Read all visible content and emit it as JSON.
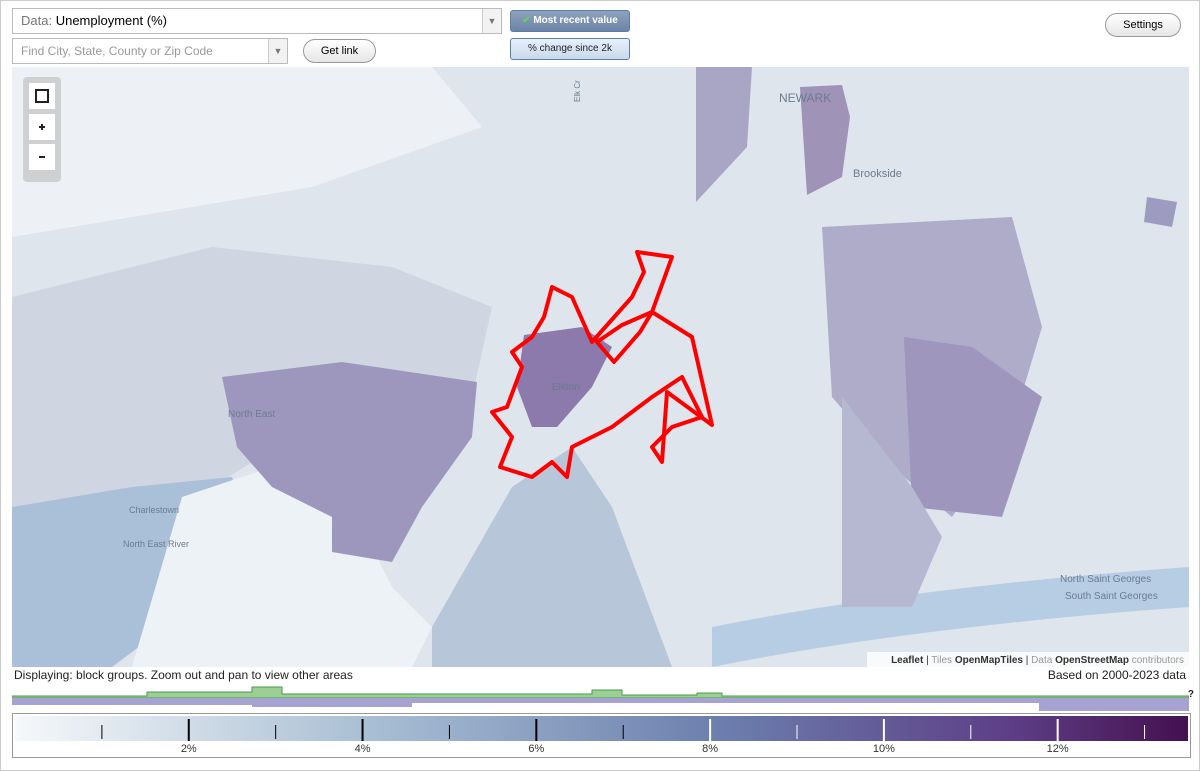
{
  "controls": {
    "data_label": "Data:",
    "data_value": "Unemployment (%)",
    "search_placeholder": "Find City, State, County or Zip Code",
    "get_link": "Get link",
    "most_recent": "Most recent value",
    "pct_change": "% change since 2k",
    "settings": "Settings"
  },
  "map": {
    "labels": [
      "NEWARK",
      "Brookside",
      "Elkton",
      "North East",
      "Charlestown",
      "North East River",
      "North Saint Georges",
      "South Saint Georges",
      "Elk Cr"
    ],
    "attribution": {
      "leaflet": "Leaflet",
      "tiles_prefix": "Tiles",
      "tiles": "OpenMapTiles",
      "data_prefix": "Data",
      "data": "OpenStreetMap",
      "suffix": "contributors"
    }
  },
  "footer": {
    "displaying": "Displaying: block groups. Zoom out and pan to view other areas",
    "based_on": "Based on 2000-2023 data",
    "help": "?"
  },
  "legend": {
    "lim": [
      0,
      13.5
    ],
    "ticks": [
      {
        "value": 2,
        "label": "2%"
      },
      {
        "value": 4,
        "label": "4%"
      },
      {
        "value": 6,
        "label": "6%"
      },
      {
        "value": 8,
        "label": "8%"
      },
      {
        "value": 10,
        "label": "10%"
      },
      {
        "value": 12,
        "label": "12%"
      }
    ],
    "minor_ticks": [
      1,
      3,
      5,
      7,
      9,
      11,
      13
    ]
  }
}
